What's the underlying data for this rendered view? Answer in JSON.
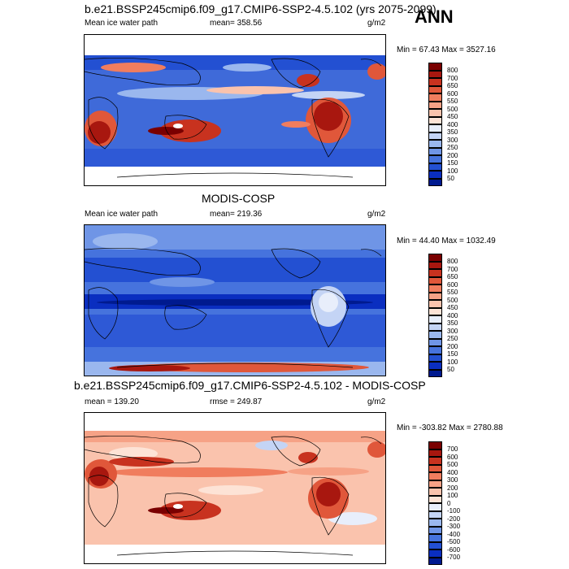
{
  "season": "ANN",
  "panels": [
    {
      "title": "b.e21.BSSP245cmip6.f09_g17.CMIP6-SSP2-4.5.102 (yrs 2075-2099)",
      "left_label": "Mean ice water path",
      "center_label": "mean= 358.56",
      "units": "g/m2",
      "minmax": "Min =  67.43 Max = 3527.16",
      "colorbar_labels": [
        "800",
        "700",
        "650",
        "600",
        "550",
        "500",
        "450",
        "400",
        "350",
        "300",
        "250",
        "200",
        "150",
        "100",
        "50"
      ],
      "colorbar_colors": [
        "#7a0000",
        "#a8170f",
        "#c8321f",
        "#e0573a",
        "#f07d5e",
        "#f6a286",
        "#fac3ad",
        "#fde3d6",
        "#e8eefb",
        "#c4d4f5",
        "#9ab7ee",
        "#6f95e6",
        "#4673dd",
        "#2350d2",
        "#0a2ec0",
        "#001a8f"
      ]
    },
    {
      "title": "MODIS-COSP",
      "left_label": "Mean ice water path",
      "center_label": "mean= 219.36",
      "units": "g/m2",
      "minmax": "Min =  44.40 Max = 1032.49",
      "colorbar_labels": [
        "800",
        "700",
        "650",
        "600",
        "550",
        "500",
        "450",
        "400",
        "350",
        "300",
        "250",
        "200",
        "150",
        "100",
        "50"
      ],
      "colorbar_colors": [
        "#7a0000",
        "#a8170f",
        "#c8321f",
        "#e0573a",
        "#f07d5e",
        "#f6a286",
        "#fac3ad",
        "#fde3d6",
        "#e8eefb",
        "#c4d4f5",
        "#9ab7ee",
        "#6f95e6",
        "#4673dd",
        "#2350d2",
        "#0a2ec0",
        "#001a8f"
      ]
    },
    {
      "title": "b.e21.BSSP245cmip6.f09_g17.CMIP6-SSP2-4.5.102 - MODIS-COSP",
      "left_label": "mean = 139.20",
      "center_label": "rmse = 249.87",
      "units": "g/m2",
      "minmax": "Min = -303.82 Max = 2780.88",
      "colorbar_labels": [
        "700",
        "600",
        "500",
        "400",
        "300",
        "200",
        "100",
        "0",
        "-100",
        "-200",
        "-300",
        "-400",
        "-500",
        "-600",
        "-700"
      ],
      "colorbar_colors": [
        "#7a0000",
        "#a8170f",
        "#c8321f",
        "#e0573a",
        "#f07d5e",
        "#f6a286",
        "#fac3ad",
        "#fde3d6",
        "#e8eefb",
        "#c4d4f5",
        "#9ab7ee",
        "#6f95e6",
        "#4673dd",
        "#2350d2",
        "#0a2ec0",
        "#001a8f"
      ]
    }
  ]
}
